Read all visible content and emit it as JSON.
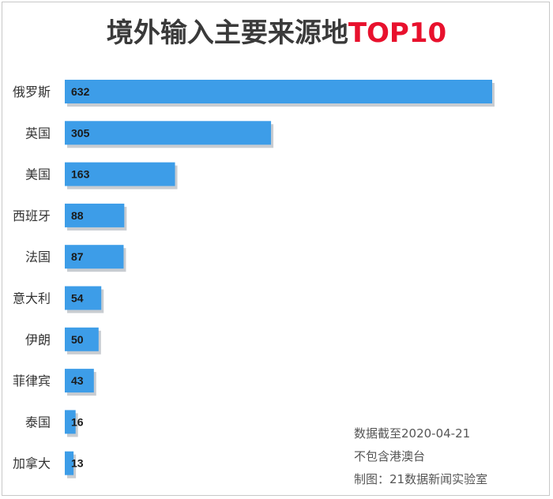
{
  "title": {
    "main": "境外输入主要来源地",
    "highlight": "TOP10"
  },
  "notes": [
    "数据截至2020-04-21",
    "不包含港澳台",
    "制图：21数据新闻实验室"
  ],
  "colors": {
    "bar": "#3d9de8",
    "bar_shadow": "#9aa3ab",
    "title": "#3a3a3a",
    "highlight": "#e8112d"
  },
  "chart_data": {
    "type": "bar",
    "orientation": "horizontal",
    "categories": [
      "俄罗斯",
      "英国",
      "美国",
      "西班牙",
      "法国",
      "意大利",
      "伊朗",
      "菲律宾",
      "泰国",
      "加拿大"
    ],
    "values": [
      632,
      305,
      163,
      88,
      87,
      54,
      50,
      43,
      16,
      13
    ],
    "title": "境外输入主要来源地TOP10",
    "grid": false,
    "legend": "none"
  }
}
